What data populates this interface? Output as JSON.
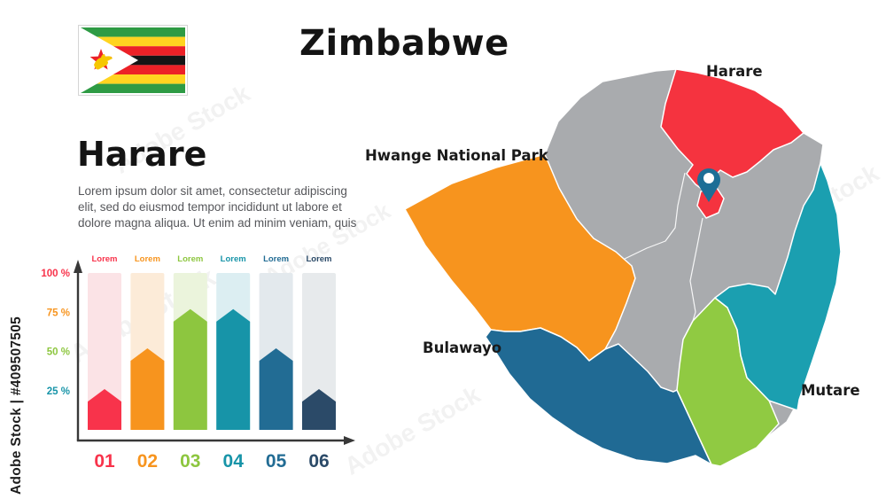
{
  "watermark": {
    "id_label": "Adobe Stock | #409507505",
    "diagonal_label": "Adobe Stock"
  },
  "header": {
    "title": "Zimbabwe"
  },
  "flag": {
    "green": "#2E9B44",
    "yellow": "#FFD420",
    "red": "#EC2127",
    "black": "#151515",
    "white": "#FFFFFF",
    "star_red": "#EC2127",
    "bird_yellow": "#F6C700",
    "border": "#D5D5D5"
  },
  "info": {
    "heading": "Harare",
    "body": "Lorem ipsum dolor sit amet, consectetur adipiscing elit, sed do eiusmod tempor incididunt ut labore et dolore magna aliqua. Ut enim ad minim veniam, quis"
  },
  "chart_data": {
    "type": "bar",
    "title": "",
    "xlabel": "",
    "ylabel": "",
    "categories": [
      "01",
      "02",
      "03",
      "04",
      "05",
      "06"
    ],
    "values": [
      26,
      52,
      77,
      77,
      52,
      26
    ],
    "bar_labels": [
      "Lorem",
      "Lorem",
      "Lorem",
      "Lorem",
      "Lorem",
      "Lorem"
    ],
    "bar_colors": [
      "#F8334B",
      "#F7941E",
      "#8DC63F",
      "#1794A8",
      "#226C94",
      "#2B4A68"
    ],
    "bar_bg_colors": [
      "#FBE3E6",
      "#FCEBD8",
      "#EBF4DC",
      "#DCEEF2",
      "#E3E9ED",
      "#E7EAEC"
    ],
    "ytick_labels": [
      "100 %",
      "75 %",
      "50 %",
      "25 %"
    ],
    "ytick_values": [
      100,
      75,
      50,
      25
    ],
    "ytick_colors": [
      "#F8334B",
      "#F7941E",
      "#8DC63F",
      "#1794A8"
    ],
    "ylim": [
      0,
      100
    ],
    "cap_height_pct": 8,
    "grid": false,
    "legend": false,
    "axis_color": "#383838"
  },
  "map": {
    "labels": {
      "harare": "Harare",
      "hwange": "Hwange National Park",
      "bulawayo": "Bulawayo",
      "mutare": "Mutare"
    },
    "region_colors": {
      "base_gray": "#A9ABAE",
      "north_red": "#F5333F",
      "west_orange": "#F7941E",
      "southwest_blue": "#206A94",
      "south_green": "#90CA42",
      "east_teal": "#1B9FB0"
    },
    "pin_color": "#1D6E96",
    "pin_inner": "#FFFFFF",
    "border_color": "#FFFFFF"
  }
}
